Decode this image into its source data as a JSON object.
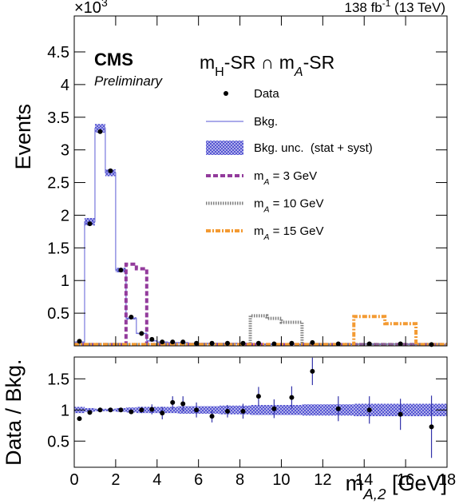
{
  "chart_data": {
    "type": "histogram",
    "experiment": "CMS",
    "status": "Preliminary",
    "lumi": [
      {
        "text": "138 fb"
      },
      {
        "text": "-1",
        "sup": true
      },
      {
        "text": " (13 TeV)"
      }
    ],
    "region": [
      {
        "text": "m"
      },
      {
        "text": "H",
        "sub": true
      },
      {
        "text": "-SR ∩ m"
      },
      {
        "text": "A",
        "sub": true,
        "italic": true
      },
      {
        "text": "-SR"
      }
    ],
    "y_multiplier": [
      {
        "text": "×10"
      },
      {
        "text": "3",
        "sup": true
      }
    ],
    "ylabel": "Events",
    "ratio_ylabel": "Data / Bkg.",
    "xlabel": [
      {
        "text": "m"
      },
      {
        "text": "A,2",
        "sub": true,
        "italic": true
      },
      {
        "text": " [GeV]"
      }
    ],
    "bins": [
      0,
      0.5,
      1,
      1.5,
      2,
      2.5,
      3,
      3.5,
      4,
      4.5,
      5,
      5.5,
      6.3,
      7,
      7.8,
      8.5,
      9.3,
      10,
      11,
      12,
      13.5,
      15,
      16.5,
      18
    ],
    "data": {
      "name": "Data",
      "color": "#000000",
      "values": [
        0.07,
        1.87,
        3.28,
        2.68,
        1.16,
        0.44,
        0.19,
        0.1,
        0.06,
        0.06,
        0.06,
        0.04,
        0.04,
        0.04,
        0.04,
        0.04,
        0.03,
        0.04,
        0.05,
        0.03,
        0.03,
        0.03,
        0.02
      ]
    },
    "background": {
      "name": "Bkg.",
      "color": "#7777dd",
      "values": [
        0.06,
        1.9,
        3.33,
        2.65,
        1.16,
        0.42,
        0.19,
        0.08,
        0.06,
        0.05,
        0.05,
        0.04,
        0.04,
        0.04,
        0.04,
        0.03,
        0.03,
        0.03,
        0.03,
        0.03,
        0.03,
        0.03,
        0.02
      ]
    },
    "background_unc": {
      "name": "Bkg. unc.  (stat + syst)",
      "color": "#4444cc",
      "values": [
        0.05,
        0.03,
        0.02,
        0.02,
        0.03,
        0.04,
        0.05,
        0.05,
        0.05,
        0.05,
        0.06,
        0.06,
        0.06,
        0.07,
        0.07,
        0.08,
        0.08,
        0.08,
        0.09,
        0.09,
        0.1,
        0.1,
        0.1
      ]
    },
    "signals": [
      {
        "name": [
          {
            "text": "m"
          },
          {
            "text": "A",
            "sub": true,
            "italic": true
          },
          {
            "text": " = 3 GeV"
          }
        ],
        "color": "#933b9c",
        "style": "dashed",
        "values": [
          0.02,
          0.02,
          0.02,
          0.02,
          0.02,
          1.25,
          1.18,
          0.02,
          0.02,
          0.02,
          0.02,
          0.02,
          0.02,
          0.02,
          0.02,
          0.02,
          0.02,
          0.02,
          0.02,
          0.02,
          0.02,
          0.02,
          0.02
        ]
      },
      {
        "name": [
          {
            "text": "m"
          },
          {
            "text": "A",
            "sub": true,
            "italic": true
          },
          {
            "text": " = 10 GeV"
          }
        ],
        "color": "#808080",
        "style": "dotted",
        "values": [
          0.02,
          0.02,
          0.02,
          0.02,
          0.02,
          0.02,
          0.02,
          0.02,
          0.02,
          0.02,
          0.02,
          0.02,
          0.02,
          0.02,
          0.02,
          0.46,
          0.42,
          0.36,
          0.02,
          0.02,
          0.02,
          0.02,
          0.02
        ]
      },
      {
        "name": [
          {
            "text": "m"
          },
          {
            "text": "A",
            "sub": true,
            "italic": true
          },
          {
            "text": " = 15 GeV"
          }
        ],
        "color": "#f39a32",
        "style": "dashdot",
        "values": [
          0.02,
          0.02,
          0.02,
          0.02,
          0.02,
          0.02,
          0.02,
          0.02,
          0.02,
          0.02,
          0.02,
          0.02,
          0.02,
          0.02,
          0.02,
          0.02,
          0.02,
          0.02,
          0.02,
          0.02,
          0.45,
          0.34,
          0.02
        ]
      }
    ],
    "ratio": {
      "values": [
        0.86,
        0.96,
        1.0,
        1.0,
        1.0,
        0.97,
        1.0,
        1.01,
        0.95,
        1.12,
        1.1,
        1.0,
        0.9,
        0.98,
        0.98,
        1.22,
        1.02,
        1.2,
        1.62,
        1.02,
        1.0,
        0.93,
        0.73
      ],
      "errors": [
        0.03,
        0.01,
        0.01,
        0.01,
        0.02,
        0.03,
        0.05,
        0.08,
        0.1,
        0.1,
        0.12,
        0.12,
        0.1,
        0.1,
        0.12,
        0.15,
        0.15,
        0.18,
        0.22,
        0.2,
        0.22,
        0.25,
        0.5
      ]
    },
    "xlim": [
      0,
      18
    ],
    "xticks": [
      0,
      2,
      4,
      6,
      8,
      10,
      12,
      14,
      16,
      18
    ],
    "ylim": [
      0,
      5.05
    ],
    "yticks": [
      0.5,
      1,
      1.5,
      2,
      2.5,
      3,
      3.5,
      4,
      4.5
    ],
    "ratio_ylim": [
      0.08,
      1.85
    ],
    "ratio_yticks": [
      0.5,
      1,
      1.5
    ]
  }
}
